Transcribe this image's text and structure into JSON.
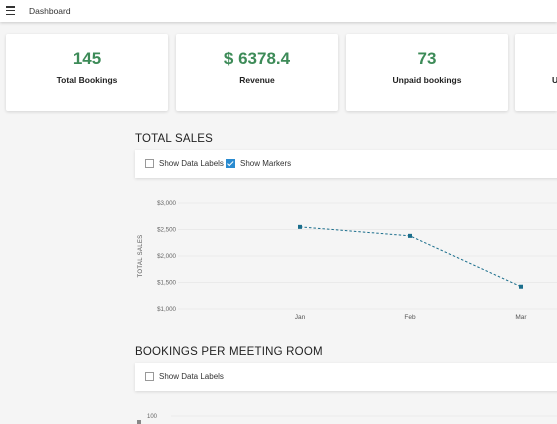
{
  "topbar": {
    "title": "Dashboard",
    "menu_icon": "hamburger-menu-icon"
  },
  "kpis": [
    {
      "value": "145",
      "label": "Total Bookings"
    },
    {
      "value": "$ 6378.4",
      "label": "Revenue"
    },
    {
      "value": "73",
      "label": "Unpaid bookings"
    },
    {
      "value": "",
      "label": "U"
    }
  ],
  "total_sales": {
    "title": "TOTAL SALES",
    "options": [
      {
        "label": "Show Data Labels",
        "checked": false
      },
      {
        "label": "Show Markers",
        "checked": true
      }
    ]
  },
  "bookings_per_room": {
    "title": "BOOKINGS PER MEETING ROOM",
    "options": [
      {
        "label": "Show Data Labels",
        "checked": false
      }
    ],
    "ytick_visible": "100"
  },
  "colors": {
    "accent_green": "#3d8b58",
    "series": "#1b6e8c",
    "checkbox": "#2a8bd0"
  },
  "chart_data": {
    "type": "line",
    "title": "",
    "xlabel": "",
    "ylabel": "TOTAL SALES",
    "categories": [
      "Jan",
      "Feb",
      "Mar"
    ],
    "series": [
      {
        "values": [
          2550,
          2380,
          1420
        ]
      }
    ],
    "ylim": [
      1000,
      3000
    ],
    "yticks": [
      "$1,000",
      "$1,500",
      "$2,000",
      "$2,500",
      "$3,000"
    ],
    "ytick_values": [
      1000,
      1500,
      2000,
      2500,
      3000
    ],
    "grid": true,
    "line_style": "dashed",
    "markers": true
  }
}
